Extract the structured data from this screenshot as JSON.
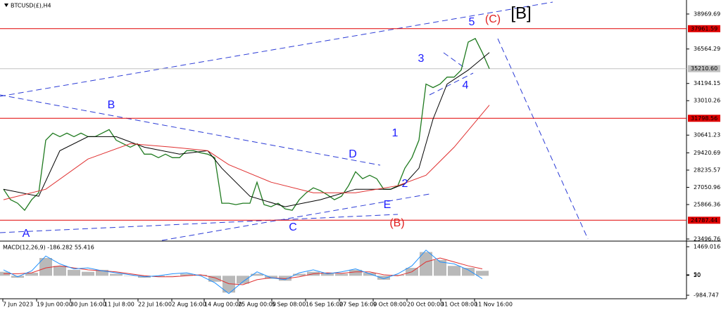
{
  "chart_data": [
    {
      "type": "line",
      "title": "BTCUSD(£),H4",
      "x": [
        0,
        1,
        2,
        3,
        4,
        5,
        6,
        7,
        8,
        9,
        10,
        11,
        12,
        13,
        14,
        15,
        16,
        17,
        18,
        19,
        20,
        21,
        22,
        23,
        24,
        25,
        26,
        27,
        28,
        29,
        30,
        31,
        32,
        33,
        34,
        35,
        36,
        37,
        38,
        39,
        40,
        41,
        42,
        43,
        44,
        45,
        46,
        47,
        48,
        49,
        50,
        51,
        52,
        53,
        54,
        55,
        56,
        57,
        58,
        59,
        60,
        61,
        62,
        63,
        64,
        65,
        66,
        67,
        68,
        69
      ],
      "xlim": [
        -0.5,
        97
      ],
      "ylim": [
        23400,
        39934
      ],
      "yticks": [
        38969.69,
        36564.29,
        34194.15,
        33010.26,
        30641.23,
        29420.69,
        28235.57,
        27050.96,
        25866.36,
        23496.76
      ],
      "xticks": [
        {
          "value": -0.1,
          "label": "7 Jun 2023"
        },
        {
          "value": 4.7,
          "label": "19 Jun 00:00"
        },
        {
          "value": 9.5,
          "label": "30 Jun 16:00"
        },
        {
          "value": 14.3,
          "label": "11 Jul 8:00"
        },
        {
          "value": 19.1,
          "label": "22 Jul 16:00"
        },
        {
          "value": 23.9,
          "label": "2 Aug 16:00"
        },
        {
          "value": 28.5,
          "label": "14 Aug 00:00"
        },
        {
          "value": 33.3,
          "label": "25 Aug 00:00"
        },
        {
          "value": 38.1,
          "label": "5 Sep 08:00"
        },
        {
          "value": 42.9,
          "label": "16 Sep 16:00"
        },
        {
          "value": 47.7,
          "label": "27 Sep 16:00"
        },
        {
          "value": 52.5,
          "label": "9 Oct 08:00"
        },
        {
          "value": 57.3,
          "label": "20 Oct 00:00"
        },
        {
          "value": 62.1,
          "label": "31 Oct 08:00"
        },
        {
          "value": 66.9,
          "label": "11 Nov 16:00"
        }
      ],
      "series": [
        {
          "color": "#1f7a1f",
          "values": [
            26920,
            26197,
            25956,
            25474,
            26197,
            26679,
            30294,
            30776,
            30535,
            30776,
            30535,
            30776,
            30535,
            30535,
            30776,
            31017,
            30294,
            30053,
            29812,
            30053,
            29330,
            29330,
            29089,
            29330,
            29089,
            29089,
            29571,
            29571,
            29426,
            29330,
            29089,
            25956,
            25956,
            25860,
            25956,
            25956,
            27402,
            25860,
            25715,
            25956,
            25570,
            25474,
            26197,
            26679,
            27016,
            26823,
            26534,
            26197,
            26438,
            27161,
            28125,
            27643,
            27884,
            27643,
            26920,
            26920,
            27161,
            28366,
            29089,
            30294,
            34150,
            33909,
            34150,
            34632,
            34632,
            35114,
            37042,
            37283,
            36319,
            35210
          ]
        },
        {
          "color": "#000000",
          "x": [
            0,
            5,
            8,
            12,
            16,
            20,
            25,
            29,
            31,
            35,
            40,
            45,
            50,
            55,
            57,
            59,
            61,
            63,
            66,
            69
          ],
          "values": [
            26920,
            26438,
            29571,
            30535,
            30535,
            29812,
            29330,
            29571,
            28366,
            26438,
            25715,
            26197,
            26920,
            26920,
            27306,
            28366,
            31740,
            34150,
            35114,
            36319
          ]
        },
        {
          "color": "#e03030",
          "x": [
            0,
            6,
            12,
            18,
            24,
            29,
            32,
            38,
            44,
            50,
            56,
            60,
            64,
            69
          ],
          "values": [
            26197,
            26920,
            28998,
            30053,
            29812,
            29571,
            28607,
            27402,
            26679,
            26679,
            27161,
            27884,
            29812,
            32704
          ]
        }
      ],
      "hlines": [
        {
          "value": 37961.59,
          "color": "#e00000"
        },
        {
          "value": 35210.6,
          "label": "35210.60",
          "color": "#c0c0c0"
        },
        {
          "value": 31798.56,
          "color": "#e00000"
        },
        {
          "value": 24787.44,
          "color": "#e00000"
        }
      ],
      "annotations": [
        {
          "text": "A",
          "color": "#1a1aff"
        },
        {
          "text": "B",
          "color": "#1a1aff"
        },
        {
          "text": "C",
          "color": "#1a1aff"
        },
        {
          "text": "D",
          "color": "#1a1aff"
        },
        {
          "text": "E",
          "color": "#1a1aff"
        },
        {
          "text": "1",
          "color": "#1a1aff"
        },
        {
          "text": "2",
          "color": "#1a1aff"
        },
        {
          "text": "3",
          "color": "#1a1aff"
        },
        {
          "text": "4",
          "color": "#1a1aff"
        },
        {
          "text": "5",
          "color": "#1a1aff"
        },
        {
          "text": "(B)",
          "color": "#e02020"
        },
        {
          "text": "(C)",
          "color": "#e02020"
        },
        {
          "text": "[B]",
          "color": "#000000"
        }
      ]
    },
    {
      "type": "bar",
      "title": "MACD(12,26,9) -186.282 55.416",
      "x": [
        0,
        2,
        4,
        6,
        8,
        10,
        12,
        14,
        16,
        18,
        20,
        22,
        24,
        26,
        28,
        30,
        32,
        34,
        36,
        38,
        40,
        42,
        44,
        46,
        48,
        50,
        52,
        54,
        56,
        58,
        60,
        62,
        64,
        66,
        68
      ],
      "xlim": [
        -0.5,
        97
      ],
      "ylim": [
        -984.747,
        1469.016
      ],
      "yticks": [
        1469.016,
        50,
        20,
        -984.747
      ],
      "color": "#a8a8a8",
      "values": [
        200,
        -100,
        150,
        900,
        500,
        300,
        200,
        300,
        100,
        0,
        -100,
        -50,
        0,
        100,
        50,
        -300,
        -850,
        -400,
        100,
        -150,
        -250,
        100,
        200,
        150,
        100,
        300,
        150,
        -200,
        50,
        400,
        1200,
        800,
        500,
        400,
        250
      ],
      "series": [
        {
          "color": "#e03030",
          "values": [
            100,
            100,
            150,
            400,
            500,
            400,
            300,
            250,
            200,
            100,
            0,
            -50,
            -50,
            0,
            50,
            -100,
            -400,
            -450,
            -200,
            -100,
            -150,
            -50,
            100,
            150,
            120,
            200,
            200,
            50,
            0,
            200,
            700,
            900,
            700,
            500,
            350
          ]
        },
        {
          "color": "#1e90ff",
          "values": [
            300,
            -50,
            250,
            1000,
            600,
            350,
            400,
            250,
            150,
            50,
            -50,
            0,
            100,
            150,
            0,
            -350,
            -900,
            -300,
            200,
            -100,
            -200,
            150,
            300,
            100,
            200,
            350,
            100,
            -150,
            100,
            500,
            1300,
            700,
            600,
            300,
            -150
          ]
        }
      ]
    }
  ]
}
